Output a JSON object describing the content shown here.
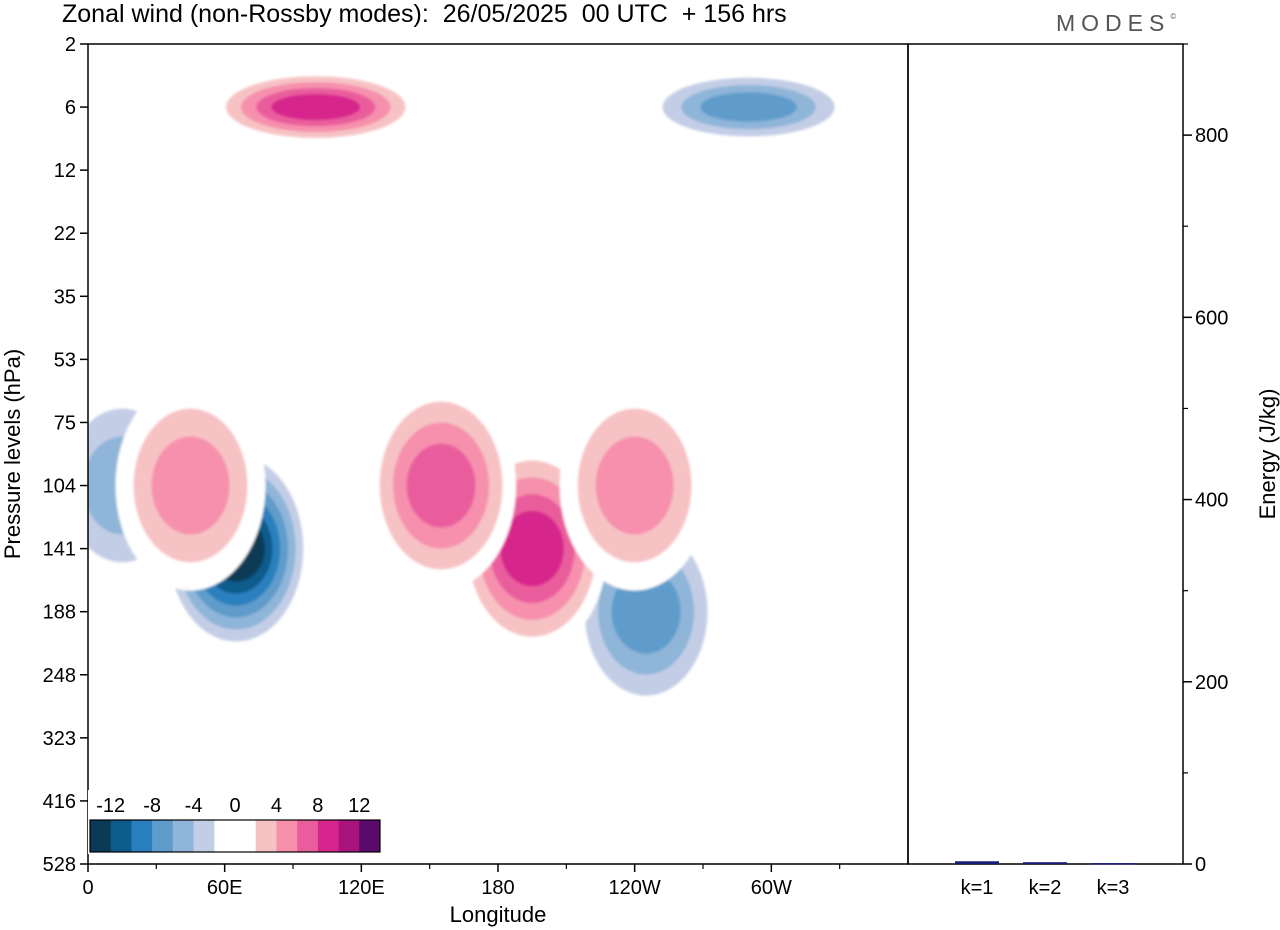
{
  "title": "Zonal wind (non-Rossby modes):  26/05/2025  00 UTC  + 156 hrs",
  "brand": "MODES",
  "brand_mark": "©",
  "chart_data": [
    {
      "type": "heatmap",
      "xlabel": "Longitude",
      "ylabel": "Pressure levels (hPa)",
      "x_ticks": [
        "0",
        "60E",
        "120E",
        "180",
        "120W",
        "60W"
      ],
      "x_tick_values": [
        0,
        60,
        120,
        180,
        240,
        300
      ],
      "xlim": [
        0,
        360
      ],
      "y_ticks": [
        "2",
        "6",
        "12",
        "22",
        "35",
        "53",
        "75",
        "104",
        "141",
        "188",
        "248",
        "323",
        "416",
        "528"
      ],
      "colorbar": {
        "tick_labels": [
          "-12",
          "-8",
          "-4",
          "0",
          "4",
          "8",
          "12"
        ],
        "levels": [
          -14,
          -12,
          -10,
          -8,
          -6,
          -4,
          -2,
          0,
          2,
          4,
          6,
          8,
          10,
          12,
          14
        ],
        "colors": [
          "#0a3a55",
          "#0d5c8c",
          "#2a80be",
          "#5f9ccb",
          "#8fb5d9",
          "#c3cde6",
          "#ffffff",
          "#ffffff",
          "#f7c2c4",
          "#f690ad",
          "#ea5d9d",
          "#d6258c",
          "#a8137d",
          "#5a0a6b"
        ]
      },
      "features": [
        {
          "kind": "negative",
          "lon": 65,
          "level": "141",
          "value": -14
        },
        {
          "kind": "negative",
          "lon": 15,
          "level": "104",
          "value": -6
        },
        {
          "kind": "negative",
          "lon": 245,
          "level": "188",
          "value": -8
        },
        {
          "kind": "negative",
          "lon": 290,
          "level": "6",
          "value": -8
        },
        {
          "kind": "positive",
          "lon": 195,
          "level": "141",
          "value": 11
        },
        {
          "kind": "positive",
          "lon": 155,
          "level": "104",
          "value": 8
        },
        {
          "kind": "positive",
          "lon": 240,
          "level": "104",
          "value": 7
        },
        {
          "kind": "positive",
          "lon": 45,
          "level": "104",
          "value": 7
        },
        {
          "kind": "positive",
          "lon": 100,
          "level": "6",
          "value": 11
        }
      ]
    },
    {
      "type": "bar",
      "categories": [
        "k=1",
        "k=2",
        "k=3"
      ],
      "values": [
        3,
        2,
        1
      ],
      "ylabel": "Energy (J/kg)",
      "ylim": [
        0,
        900
      ],
      "y_ticks": [
        0,
        200,
        400,
        600,
        800
      ],
      "bar_color": "#1a1a7a"
    }
  ]
}
